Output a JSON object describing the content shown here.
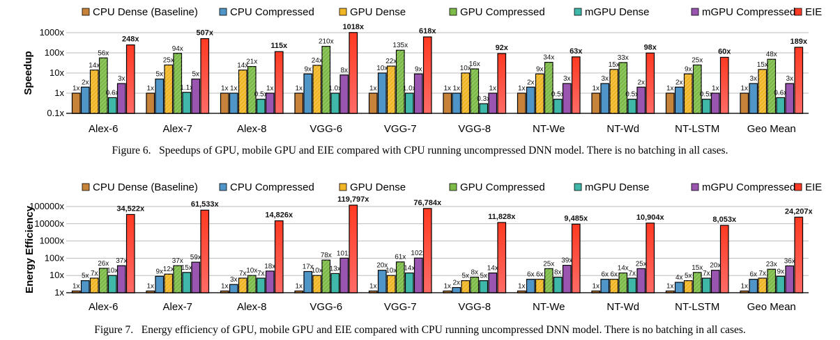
{
  "colors": [
    "#c7833a",
    "#4f95c8",
    "#f0b626",
    "#7cbb48",
    "#3fb7a9",
    "#9a55b0",
    "#ff3a26"
  ],
  "chart_data": [
    {
      "type": "bar",
      "ylabel": "Speedup",
      "yscale": "log",
      "ylim": [
        0.1,
        1000
      ],
      "yticks": [
        "0.1x",
        "1x",
        "10x",
        "100x",
        "1000x"
      ],
      "grid": true,
      "legend": "top",
      "categories": [
        "Alex-6",
        "Alex-7",
        "Alex-8",
        "VGG-6",
        "VGG-7",
        "VGG-8",
        "NT-We",
        "NT-Wd",
        "NT-LSTM",
        "Geo Mean"
      ],
      "series": [
        {
          "name": "CPU Dense (Baseline)",
          "values": [
            1,
            1,
            1,
            1,
            1,
            1,
            1,
            1,
            1,
            1
          ],
          "labels": [
            "1x",
            "1x",
            "1x",
            "1x",
            "1x",
            "1x",
            "1x",
            "1x",
            "1x",
            "1x"
          ]
        },
        {
          "name": "CPU Compressed",
          "values": [
            2,
            5,
            1,
            9,
            10,
            1,
            2,
            3,
            2,
            3
          ],
          "labels": [
            "2x",
            "5x",
            "1x",
            "9x",
            "10x",
            "1x",
            "2x",
            "3x",
            "2x",
            "3x"
          ]
        },
        {
          "name": "GPU Dense",
          "values": [
            14,
            25,
            14,
            24,
            22,
            10,
            9,
            15,
            9,
            15
          ],
          "labels": [
            "14x",
            "25x",
            "14x",
            "24x",
            "22x",
            "10x",
            "9x",
            "15x",
            "9x",
            "15x"
          ]
        },
        {
          "name": "GPU Compressed",
          "values": [
            56,
            94,
            21,
            210,
            135,
            16,
            34,
            33,
            25,
            48
          ],
          "labels": [
            "56x",
            "94x",
            "21x",
            "210x",
            "135x",
            "16x",
            "34x",
            "33x",
            "25x",
            "48x"
          ]
        },
        {
          "name": "mGPU Dense",
          "values": [
            0.6,
            1.1,
            0.5,
            1.0,
            1.0,
            0.3,
            0.5,
            0.5,
            0.5,
            0.6
          ],
          "labels": [
            "0.6x",
            "1.1x",
            "0.5x",
            "1.0x",
            "1.0x",
            "0.3x",
            "0.5x",
            "0.5x",
            "0.5x",
            "0.6x"
          ]
        },
        {
          "name": "mGPU Compressed",
          "values": [
            3,
            5,
            1,
            8,
            9,
            1,
            3,
            2,
            1,
            3
          ],
          "labels": [
            "3x",
            "5x",
            "1x",
            "8x",
            "9x",
            "1x",
            "3x",
            "2x",
            "1x",
            "3x"
          ]
        },
        {
          "name": "EIE",
          "values": [
            248,
            507,
            115,
            1018,
            618,
            92,
            63,
            98,
            60,
            189
          ],
          "labels": [
            "248x",
            "507x",
            "115x",
            "1018x",
            "618x",
            "92x",
            "63x",
            "98x",
            "60x",
            "189x"
          ]
        }
      ]
    },
    {
      "type": "bar",
      "ylabel": "Energy Efficiency",
      "yscale": "log",
      "ylim": [
        1,
        100000
      ],
      "yticks": [
        "1x",
        "10x",
        "100x",
        "1000x",
        "10000x",
        "100000x"
      ],
      "grid": true,
      "legend": "top",
      "categories": [
        "Alex-6",
        "Alex-7",
        "Alex-8",
        "VGG-6",
        "VGG-7",
        "VGG-8",
        "NT-We",
        "NT-Wd",
        "NT-LSTM",
        "Geo Mean"
      ],
      "series": [
        {
          "name": "CPU Dense (Baseline)",
          "values": [
            1,
            1,
            1,
            1,
            1,
            1,
            1,
            1,
            1,
            1
          ],
          "labels": [
            "1x",
            "1x",
            "1x",
            "1x",
            "1x",
            "1x",
            "1x",
            "1x",
            "1x",
            "1x"
          ]
        },
        {
          "name": "CPU Compressed",
          "values": [
            5,
            9,
            3,
            17,
            20,
            2,
            6,
            6,
            4,
            6
          ],
          "labels": [
            "5x",
            "9x",
            "3x",
            "17x",
            "20x",
            "2x",
            "6x",
            "6x",
            "4x",
            "6x"
          ]
        },
        {
          "name": "GPU Dense",
          "values": [
            7,
            12,
            7,
            10,
            10,
            5,
            6,
            6,
            5,
            7
          ],
          "labels": [
            "7x",
            "12x",
            "7x",
            "10x",
            "10x",
            "5x",
            "6x",
            "6x",
            "5x",
            "7x"
          ]
        },
        {
          "name": "GPU Compressed",
          "values": [
            26,
            37,
            10,
            78,
            61,
            8,
            25,
            14,
            15,
            23
          ],
          "labels": [
            "26x",
            "37x",
            "10x",
            "78x",
            "61x",
            "8x",
            "25x",
            "14x",
            "15x",
            "23x"
          ]
        },
        {
          "name": "mGPU Dense",
          "values": [
            10,
            15,
            7,
            13,
            14,
            5,
            8,
            7,
            7,
            9
          ],
          "labels": [
            "10x",
            "15x",
            "7x",
            "13x",
            "14x",
            "5x",
            "8x",
            "7x",
            "7x",
            "9x"
          ]
        },
        {
          "name": "mGPU Compressed",
          "values": [
            37,
            59,
            18,
            101,
            102,
            14,
            39,
            25,
            20,
            36
          ],
          "labels": [
            "37x",
            "59x",
            "18x",
            "101x",
            "102x",
            "14x",
            "39x",
            "25x",
            "20x",
            "36x"
          ]
        },
        {
          "name": "EIE",
          "values": [
            34522,
            61533,
            14826,
            119797,
            76784,
            11828,
            9485,
            10904,
            8053,
            24207
          ],
          "labels": [
            "34,522x",
            "61,533x",
            "14,826x",
            "119,797x",
            "76,784x",
            "11,828x",
            "9,485x",
            "10,904x",
            "8,053x",
            "24,207x"
          ]
        }
      ]
    }
  ],
  "captions": [
    "Figure 6.   Speedups of GPU, mobile GPU and EIE compared with CPU running uncompressed DNN model. There is no batching in all cases.",
    "Figure 7.   Energy efficiency of GPU, mobile GPU and EIE compared with CPU running uncompressed DNN model. There is no batching in all cases."
  ]
}
